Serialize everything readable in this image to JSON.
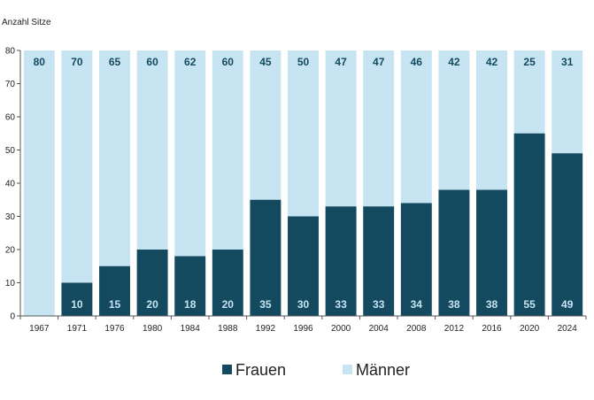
{
  "chart_data": {
    "type": "bar",
    "stacked": true,
    "ylabel": "Anzahl Sitze",
    "ylim": [
      0,
      80
    ],
    "yticks": [
      0,
      10,
      20,
      30,
      40,
      50,
      60,
      70,
      80
    ],
    "grid": false,
    "legend_position": "bottom-center",
    "categories": [
      "1967",
      "1971",
      "1976",
      "1980",
      "1984",
      "1988",
      "1992",
      "1996",
      "2000",
      "2004",
      "2008",
      "2012",
      "2016",
      "2020",
      "2024"
    ],
    "series": [
      {
        "name": "Frauen",
        "color": "#134a5f",
        "label_color": "#c7e4f3",
        "values": [
          0,
          10,
          15,
          20,
          18,
          20,
          35,
          30,
          33,
          33,
          34,
          38,
          38,
          55,
          49
        ]
      },
      {
        "name": "Männer",
        "color": "#c7e4f3",
        "label_color": "#134a5f",
        "values": [
          80,
          70,
          65,
          60,
          62,
          60,
          45,
          50,
          47,
          47,
          46,
          42,
          42,
          25,
          31
        ]
      }
    ]
  }
}
